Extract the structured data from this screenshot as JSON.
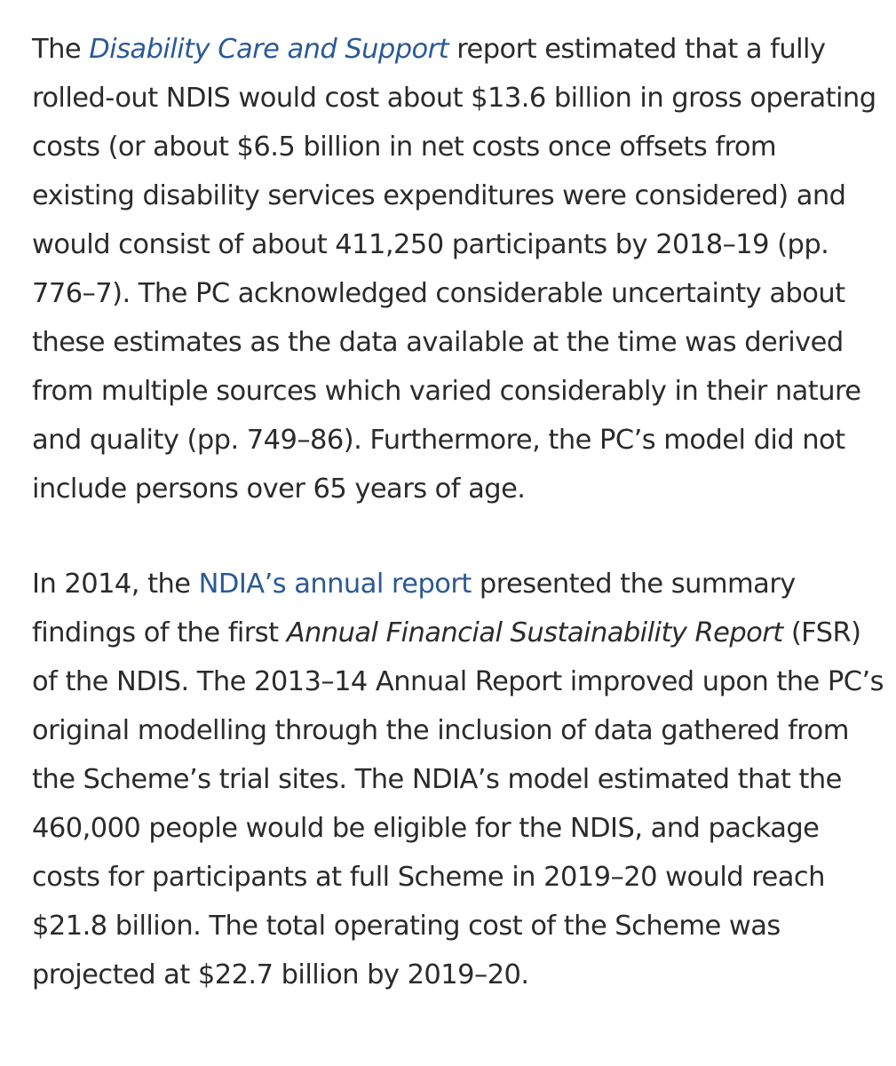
{
  "paragraphs": [
    {
      "before_link": "The ",
      "link_text": "Disability Care and Support",
      "after_link": " report estimated that a fully rolled-out NDIS would cost about $13.6 billion in gross operating costs (or about $6.5 billion in net costs once offsets from existing disability services expenditures were considered) and would consist of about 411,250 participants by 2018–19 (pp. 776–7). The PC acknowledged considerable uncertainty about these estimates as the data available at the time was derived from multiple sources which varied considerably in their nature and quality (pp. 749–86). Furthermore, the PC’s model did not include persons over 65 years of age."
    },
    {
      "before_link": "In 2014, the ",
      "link_text": "NDIA’s annual report",
      "mid_text": " presented the summary findings of the first ",
      "italic_text": "Annual Financial Sustainability Report",
      "after_italic": " (FSR) of the NDIS. The 2013–14 Annual Report improved upon the PC’s original modelling through the inclusion of data gathered from the Scheme’s trial sites. The NDIA’s model estimated that the 460,000 people would be eligible for the NDIS, and package costs for participants at full Scheme in 2019–20 would reach $21.8 billion. The total operating cost of the Scheme was projected at $22.7 billion by 2019–20."
    }
  ],
  "colors": {
    "text": "#2b2b2b",
    "link": "#2a5a96",
    "background": "#ffffff"
  }
}
